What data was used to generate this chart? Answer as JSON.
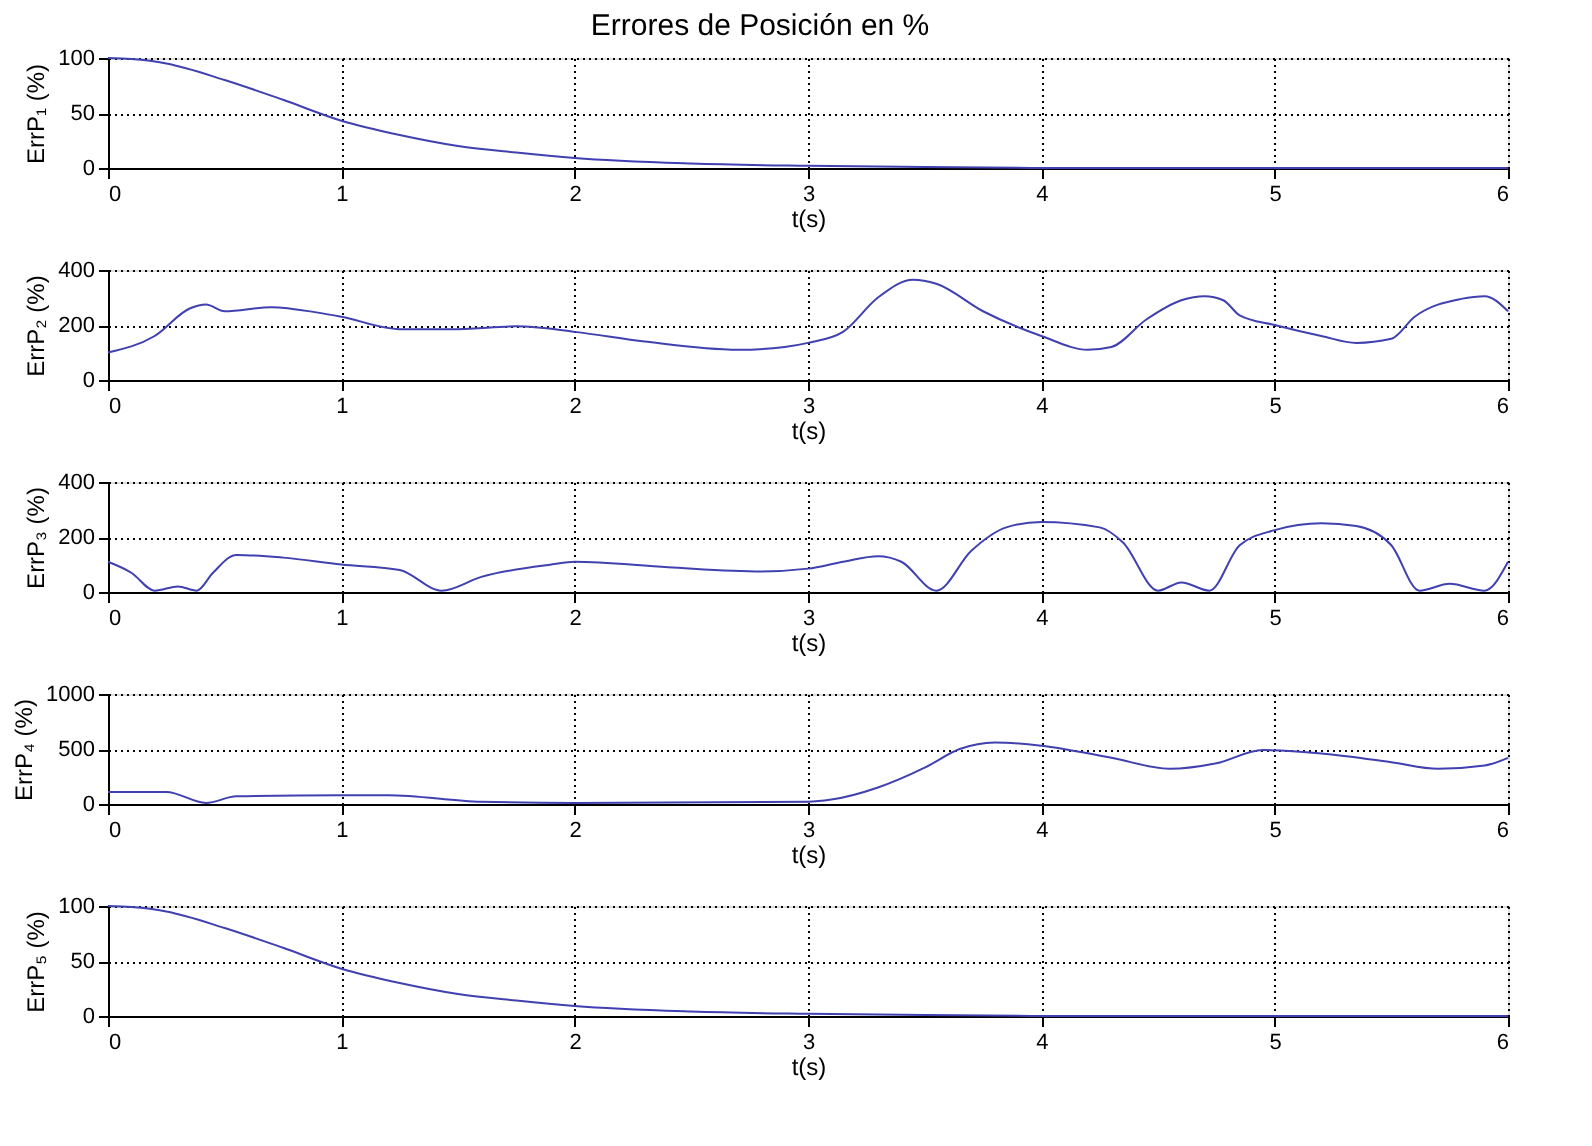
{
  "chart_data": [
    {
      "type": "line",
      "title": "Errores de Posición en %",
      "xlabel": "t(s)",
      "ylabel": "ErrP₁ (%)",
      "xlim": [
        0,
        6
      ],
      "xticks": [
        0,
        1,
        2,
        3,
        4,
        5,
        6
      ],
      "ylim": [
        0,
        100
      ],
      "yticks": [
        0,
        50,
        100
      ],
      "grid": true,
      "line_style": "solid",
      "marker": "none",
      "series": [
        {
          "color": "#4040b0",
          "x": [
            0,
            0.1,
            0.25,
            0.5,
            0.75,
            1,
            1.25,
            1.5,
            1.75,
            2,
            2.5,
            3,
            3.5,
            4,
            5,
            6
          ],
          "values": [
            100,
            99,
            95,
            80,
            62,
            43,
            30,
            20,
            14,
            9,
            4,
            2,
            1,
            0,
            0,
            0
          ]
        }
      ]
    },
    {
      "type": "line",
      "xlabel": "t(s)",
      "ylabel": "ErrP₂ (%)",
      "xlim": [
        0,
        6
      ],
      "xticks": [
        0,
        1,
        2,
        3,
        4,
        5,
        6
      ],
      "ylim": [
        0,
        400
      ],
      "yticks": [
        0,
        200,
        400
      ],
      "grid": true,
      "line_style": "solid",
      "marker": "none",
      "series": [
        {
          "color": "#4040b0",
          "x": [
            0,
            0.2,
            0.35,
            0.42,
            0.5,
            0.7,
            0.9,
            1,
            1.25,
            1.5,
            1.75,
            2,
            2.3,
            2.7,
            2.9,
            3,
            3.15,
            3.3,
            3.45,
            3.55,
            3.75,
            4,
            4.2,
            4.3,
            4.45,
            4.6,
            4.7,
            4.78,
            4.85,
            5,
            5.2,
            5.35,
            5.5,
            5.6,
            5.8,
            5.9,
            6
          ],
          "values": [
            100,
            160,
            260,
            275,
            250,
            265,
            245,
            230,
            185,
            185,
            195,
            175,
            140,
            110,
            120,
            135,
            175,
            300,
            365,
            350,
            250,
            160,
            110,
            120,
            220,
            290,
            305,
            290,
            235,
            200,
            160,
            135,
            150,
            230,
            295,
            305,
            250
          ]
        }
      ]
    },
    {
      "type": "line",
      "xlabel": "t(s)",
      "ylabel": "ErrP₃ (%)",
      "xlim": [
        0,
        6
      ],
      "xticks": [
        0,
        1,
        2,
        3,
        4,
        5,
        6
      ],
      "ylim": [
        0,
        400
      ],
      "yticks": [
        0,
        200,
        400
      ],
      "grid": true,
      "line_style": "solid",
      "marker": "none",
      "series": [
        {
          "color": "#4040b0",
          "x": [
            0,
            0.1,
            0.2,
            0.3,
            0.38,
            0.45,
            0.55,
            0.75,
            1,
            1.25,
            1.43,
            1.6,
            1.9,
            2,
            2.4,
            2.8,
            3,
            3.15,
            3.3,
            3.4,
            3.55,
            3.7,
            3.85,
            4,
            4.25,
            4.35,
            4.5,
            4.6,
            4.72,
            4.85,
            5,
            5.2,
            5.35,
            5.5,
            5.62,
            5.75,
            5.9,
            6
          ],
          "values": [
            110,
            70,
            5,
            20,
            5,
            70,
            135,
            125,
            100,
            80,
            5,
            55,
            100,
            110,
            90,
            75,
            85,
            110,
            130,
            110,
            5,
            150,
            235,
            255,
            235,
            180,
            5,
            35,
            5,
            170,
            225,
            250,
            240,
            170,
            5,
            30,
            5,
            110
          ]
        }
      ]
    },
    {
      "type": "line",
      "xlabel": "t(s)",
      "ylabel": "ErrP₄ (%)",
      "xlim": [
        0,
        6
      ],
      "xticks": [
        0,
        1,
        2,
        3,
        4,
        5,
        6
      ],
      "ylim": [
        0,
        1000
      ],
      "yticks": [
        0,
        500,
        1000
      ],
      "grid": true,
      "line_style": "solid",
      "marker": "none",
      "series": [
        {
          "color": "#4040b0",
          "x": [
            0,
            0.25,
            0.42,
            0.55,
            1,
            1.2,
            1.6,
            2,
            3,
            3.1,
            3.3,
            3.5,
            3.65,
            3.8,
            4,
            4.3,
            4.55,
            4.75,
            4.95,
            5.2,
            5.5,
            5.7,
            5.9,
            6
          ],
          "values": [
            110,
            110,
            10,
            70,
            80,
            80,
            20,
            10,
            20,
            40,
            150,
            330,
            500,
            560,
            530,
            420,
            320,
            370,
            490,
            460,
            380,
            320,
            350,
            420
          ]
        }
      ]
    },
    {
      "type": "line",
      "xlabel": "t(s)",
      "ylabel": "ErrP₅ (%)",
      "xlim": [
        0,
        6
      ],
      "xticks": [
        0,
        1,
        2,
        3,
        4,
        5,
        6
      ],
      "ylim": [
        0,
        100
      ],
      "yticks": [
        0,
        50,
        100
      ],
      "grid": true,
      "line_style": "solid",
      "marker": "none",
      "series": [
        {
          "color": "#4040b0",
          "x": [
            0,
            0.1,
            0.25,
            0.5,
            0.75,
            1,
            1.25,
            1.5,
            1.75,
            2,
            2.5,
            3,
            3.5,
            4,
            5,
            6
          ],
          "values": [
            100,
            99,
            95,
            80,
            62,
            43,
            30,
            20,
            14,
            9,
            4,
            2,
            1,
            0,
            0,
            0
          ]
        }
      ]
    }
  ]
}
